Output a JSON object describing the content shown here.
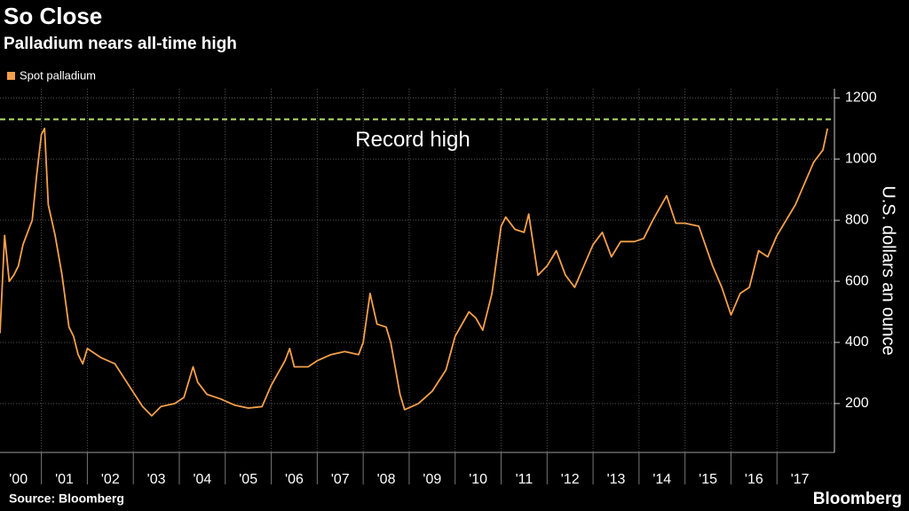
{
  "chart_data": {
    "type": "line",
    "title": "So Close",
    "subtitle": "Palladium nears all-time high",
    "y_label": "U.S. dollars an ounce",
    "source": "Source: Bloomberg",
    "brand": "Bloomberg",
    "annotation": {
      "text": "Record high",
      "value": 1130,
      "color": "#b5e06b"
    },
    "x": [
      2000.1,
      2000.2,
      2000.3,
      2000.4,
      2000.5,
      2000.6,
      2000.7,
      2000.8,
      2000.9,
      2001.0,
      2001.07,
      2001.15,
      2001.3,
      2001.45,
      2001.6,
      2001.7,
      2001.8,
      2001.9,
      2002.0,
      2002.3,
      2002.6,
      2002.9,
      2003.2,
      2003.4,
      2003.6,
      2003.9,
      2004.1,
      2004.3,
      2004.4,
      2004.6,
      2004.9,
      2005.2,
      2005.5,
      2005.8,
      2006.0,
      2006.3,
      2006.4,
      2006.5,
      2006.8,
      2007.0,
      2007.3,
      2007.6,
      2007.9,
      2008.0,
      2008.15,
      2008.3,
      2008.5,
      2008.6,
      2008.8,
      2008.9,
      2009.2,
      2009.5,
      2009.8,
      2010.0,
      2010.3,
      2010.45,
      2010.6,
      2010.8,
      2011.0,
      2011.1,
      2011.3,
      2011.5,
      2011.6,
      2011.8,
      2012.0,
      2012.2,
      2012.4,
      2012.6,
      2012.8,
      2013.0,
      2013.2,
      2013.4,
      2013.6,
      2013.9,
      2014.1,
      2014.3,
      2014.6,
      2014.8,
      2015.0,
      2015.3,
      2015.6,
      2015.8,
      2016.0,
      2016.2,
      2016.4,
      2016.6,
      2016.8,
      2017.0,
      2017.2,
      2017.4,
      2017.6,
      2017.8,
      2018.0,
      2018.1
    ],
    "series": [
      {
        "name": "Spot palladium",
        "color": "#f5a04a",
        "values": [
          430,
          750,
          600,
          620,
          650,
          720,
          760,
          800,
          950,
          1080,
          1100,
          850,
          750,
          620,
          450,
          420,
          360,
          330,
          380,
          350,
          330,
          260,
          190,
          160,
          190,
          200,
          220,
          320,
          270,
          230,
          215,
          195,
          185,
          190,
          260,
          340,
          380,
          320,
          320,
          340,
          360,
          370,
          360,
          400,
          560,
          460,
          450,
          400,
          230,
          180,
          200,
          240,
          310,
          420,
          500,
          480,
          440,
          560,
          780,
          810,
          770,
          760,
          820,
          620,
          650,
          700,
          620,
          580,
          650,
          720,
          760,
          680,
          730,
          730,
          740,
          800,
          880,
          790,
          790,
          780,
          650,
          580,
          490,
          560,
          580,
          700,
          680,
          750,
          800,
          850,
          920,
          990,
          1030,
          1100
        ]
      }
    ],
    "xlim": [
      2000.1,
      2018.25
    ],
    "xticks": [
      {
        "value": 2000,
        "label": "'00"
      },
      {
        "value": 2001,
        "label": "'01"
      },
      {
        "value": 2002,
        "label": "'02"
      },
      {
        "value": 2003,
        "label": "'03"
      },
      {
        "value": 2004,
        "label": "'04"
      },
      {
        "value": 2005,
        "label": "'05"
      },
      {
        "value": 2006,
        "label": "'06"
      },
      {
        "value": 2007,
        "label": "'07"
      },
      {
        "value": 2008,
        "label": "'08"
      },
      {
        "value": 2009,
        "label": "'09"
      },
      {
        "value": 2010,
        "label": "'10"
      },
      {
        "value": 2011,
        "label": "'11"
      },
      {
        "value": 2012,
        "label": "'12"
      },
      {
        "value": 2013,
        "label": "'13"
      },
      {
        "value": 2014,
        "label": "'14"
      },
      {
        "value": 2015,
        "label": "'15"
      },
      {
        "value": 2016,
        "label": "'16"
      },
      {
        "value": 2017,
        "label": "'17"
      }
    ],
    "ylim": [
      40,
      1230
    ],
    "yticks": [
      200,
      400,
      600,
      800,
      1000,
      1200
    ],
    "grid": true
  }
}
